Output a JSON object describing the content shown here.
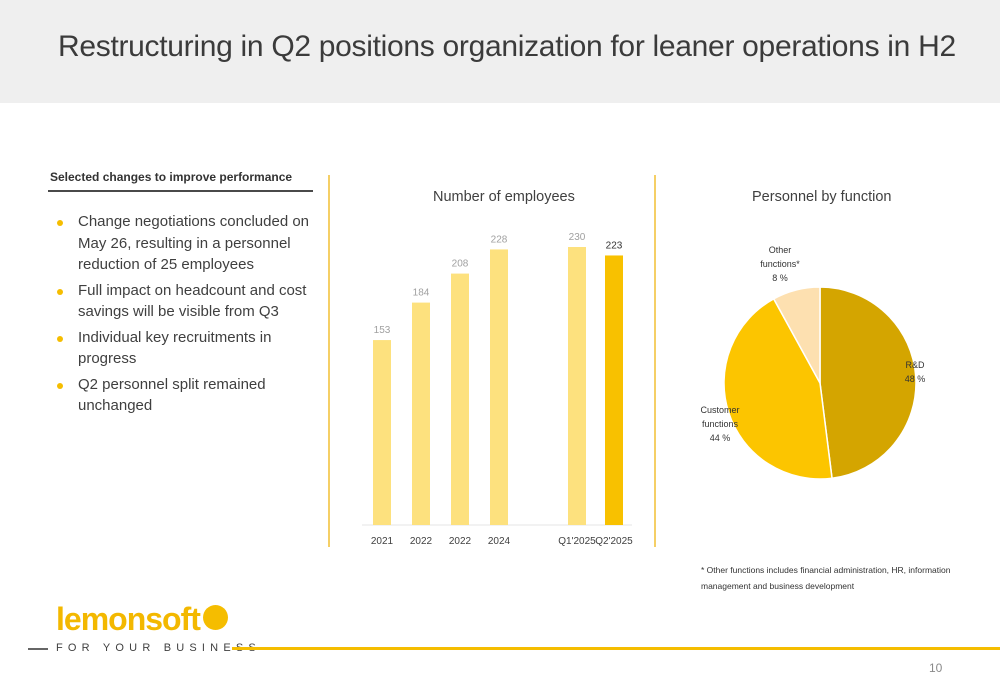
{
  "slide": {
    "title": "Restructuring in Q2 positions organization for leaner operations in H2",
    "page_number": "10"
  },
  "left_panel": {
    "heading": "Selected changes to improve performance",
    "bullets": [
      "Change negotiations concluded on May 26, resulting in a personnel reduction of 25 employees",
      "Full impact on headcount and cost savings will be visible from Q3",
      "Individual key recruitments in progress",
      "Q2 personnel split remained unchanged"
    ]
  },
  "colors": {
    "accent": "#f5bd00",
    "bar_light": "#fde17e",
    "bar_highlight": "#f8c100",
    "pie_rd": "#d4a500",
    "pie_customer": "#fcc500",
    "pie_other": "#fde0b0",
    "header_bg": "#efefef"
  },
  "chart_data": [
    {
      "type": "bar",
      "title": "Number of employees",
      "categories": [
        "2021",
        "2022",
        "2022",
        "2024",
        "Q1'2025",
        "Q2'2025"
      ],
      "values": [
        153,
        184,
        208,
        228,
        230,
        223
      ],
      "data_labels": [
        "153",
        "184",
        "208",
        "228",
        "230",
        "223"
      ],
      "highlight_index": 5,
      "grid": false
    },
    {
      "type": "pie",
      "title": "Personnel by function",
      "slices": [
        {
          "name": "R&D",
          "value": 48,
          "label": "48 %"
        },
        {
          "name": "Customer functions",
          "value": 44,
          "label": "44 %"
        },
        {
          "name": "Other functions*",
          "value": 8,
          "label": "8 %"
        }
      ],
      "footnote": "* Other functions includes financial administration, HR, information management and business development"
    }
  ],
  "logo": {
    "wordmark": "lemonsoft",
    "tagline": "FOR YOUR BUSINESS"
  }
}
